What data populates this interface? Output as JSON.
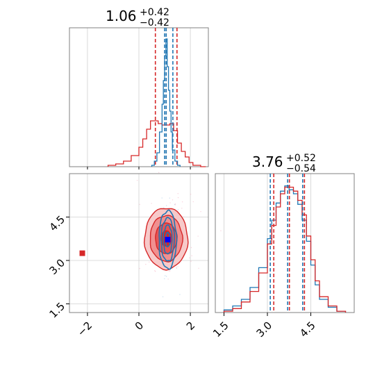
{
  "colors": {
    "red": "#d62728",
    "blue": "#1f77b4",
    "red_light": "#f2a0a0",
    "grid": "#d0d0d0",
    "frame": "#808080"
  },
  "titles": {
    "p1": {
      "median": "1.06",
      "plus": "+0.42",
      "minus": "−0.42"
    },
    "p2": {
      "median": "3.76",
      "plus": "+0.52",
      "minus": "−0.54"
    }
  },
  "chart_data": [
    {
      "type": "histogram",
      "panel": "marginal-p1",
      "xlim": [
        -2.7,
        2.7
      ],
      "grid": true,
      "series": [
        {
          "name": "",
          "color": "#d62728",
          "bins": [
            -1.2,
            -0.9,
            -0.6,
            -0.3,
            0.0,
            0.15,
            0.3,
            0.45,
            0.6,
            0.75,
            0.9,
            1.05,
            1.2,
            1.35,
            1.5,
            1.65,
            1.8,
            1.95,
            2.1,
            2.4,
            2.6
          ],
          "counts": [
            0.01,
            0.02,
            0.04,
            0.08,
            0.14,
            0.2,
            0.27,
            0.33,
            0.33,
            0.31,
            0.3,
            0.3,
            0.31,
            0.26,
            0.17,
            0.11,
            0.07,
            0.03,
            0.01,
            0.0
          ],
          "quantiles": [
            0.64,
            1.06,
            1.48
          ]
        },
        {
          "name": "",
          "color": "#1f77b4",
          "bins": [
            0.5,
            0.6,
            0.7,
            0.8,
            0.9,
            0.95,
            1.0,
            1.05,
            1.1,
            1.15,
            1.2,
            1.25,
            1.3,
            1.4,
            1.5,
            1.6
          ],
          "counts": [
            0.01,
            0.04,
            0.1,
            0.25,
            0.45,
            0.62,
            0.8,
            0.92,
            0.72,
            0.55,
            0.4,
            0.25,
            0.12,
            0.04,
            0.01
          ],
          "quantiles": [
            1.0,
            1.06,
            1.32
          ]
        }
      ]
    },
    {
      "type": "histogram",
      "panel": "marginal-p2",
      "xlim": [
        1.2,
        6.0
      ],
      "xticks": [
        "1.5",
        "3.0",
        "4.5"
      ],
      "xtick_values": [
        1.5,
        3.0,
        4.5
      ],
      "grid": true,
      "series": [
        {
          "name": "",
          "color": "#d62728",
          "bins": [
            1.5,
            1.8,
            2.1,
            2.4,
            2.7,
            3.0,
            3.15,
            3.3,
            3.45,
            3.6,
            3.75,
            3.9,
            4.05,
            4.2,
            4.35,
            4.5,
            4.65,
            4.8,
            5.1,
            5.4,
            5.7
          ],
          "counts": [
            0.01,
            0.03,
            0.08,
            0.16,
            0.3,
            0.52,
            0.66,
            0.8,
            0.9,
            0.95,
            0.95,
            0.92,
            0.85,
            0.74,
            0.58,
            0.4,
            0.24,
            0.12,
            0.05,
            0.01
          ],
          "quantiles": [
            3.22,
            3.76,
            4.28
          ]
        },
        {
          "name": "",
          "color": "#1f77b4",
          "bins": [
            1.5,
            1.8,
            2.1,
            2.4,
            2.7,
            3.0,
            3.15,
            3.3,
            3.45,
            3.6,
            3.75,
            3.9,
            4.05,
            4.2,
            4.35,
            4.5,
            4.65,
            4.8,
            5.1,
            5.4,
            5.7
          ],
          "counts": [
            0.02,
            0.05,
            0.1,
            0.19,
            0.34,
            0.56,
            0.7,
            0.83,
            0.92,
            0.96,
            0.93,
            0.9,
            0.82,
            0.7,
            0.54,
            0.36,
            0.21,
            0.1,
            0.04,
            0.01
          ],
          "quantiles": [
            3.1,
            3.7,
            4.22
          ]
        }
      ]
    },
    {
      "type": "scatter",
      "panel": "joint",
      "xlim": [
        -2.7,
        2.7
      ],
      "ylim": [
        1.2,
        6.0
      ],
      "xticks": [
        "−2",
        "0",
        "2"
      ],
      "xtick_values": [
        -2,
        0,
        2
      ],
      "yticks": [
        "1.5",
        "3.0",
        "4.5"
      ],
      "ytick_values": [
        1.5,
        3.0,
        4.5
      ],
      "grid": true,
      "series": [
        {
          "name": "",
          "color": "#d62728",
          "center": [
            1.06,
            3.76
          ],
          "sigma": [
            0.42,
            0.53
          ],
          "contour_levels": [
            0.5,
            1.0,
            1.5,
            2.0
          ],
          "marker": {
            "x": -2.2,
            "y": 3.25,
            "shape": "square"
          }
        },
        {
          "name": "",
          "color": "#1f77b4",
          "center": [
            1.12,
            3.72
          ],
          "sigma": [
            0.17,
            0.5
          ],
          "contour_levels": [
            0.5,
            1.0,
            1.5,
            2.0
          ],
          "marker": {
            "x": 1.12,
            "y": 3.72,
            "shape": "square"
          }
        }
      ]
    }
  ]
}
